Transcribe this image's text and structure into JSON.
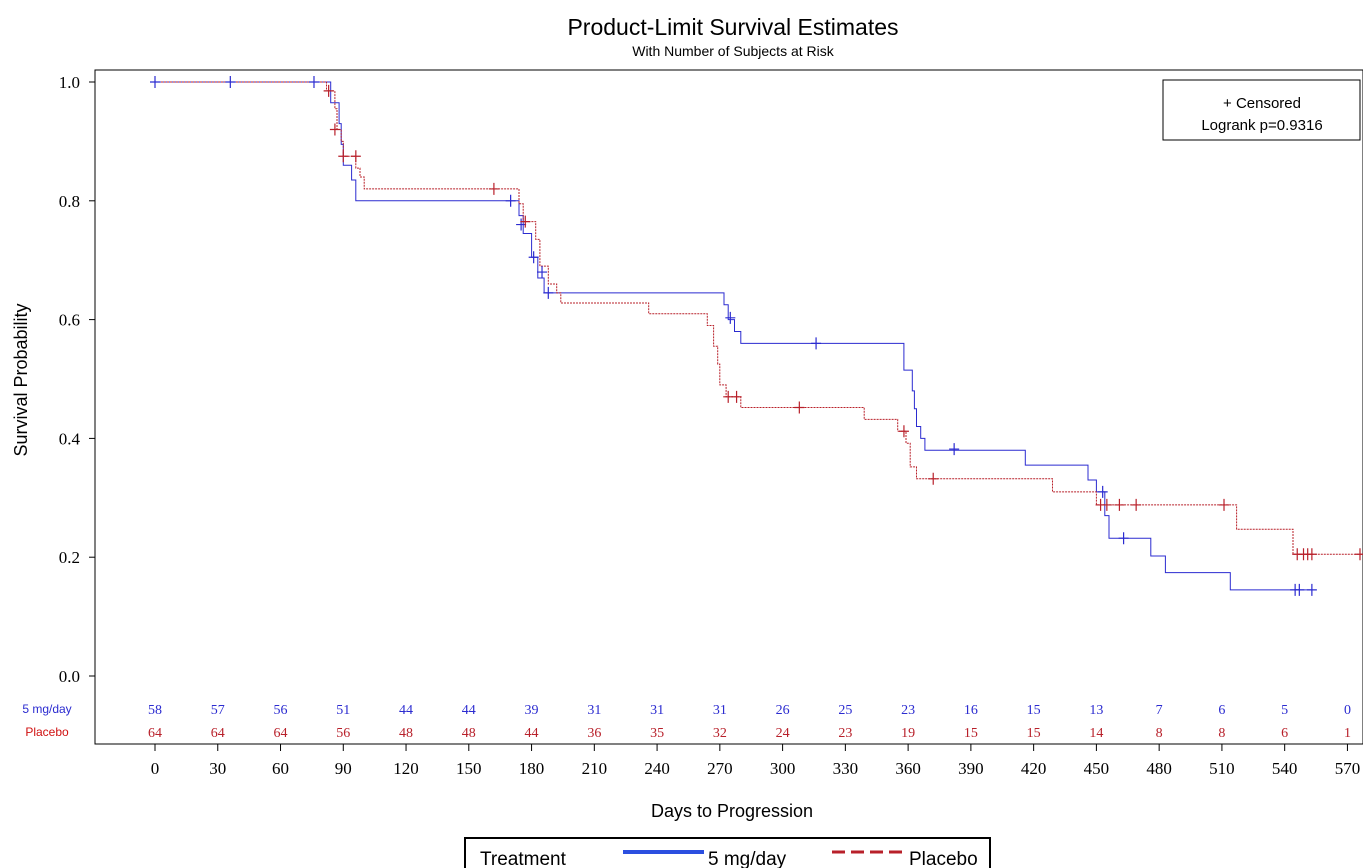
{
  "chart_data": {
    "type": "line",
    "title": "Product-Limit Survival Estimates",
    "subtitle": "With Number of Subjects at Risk",
    "xlabel": "Days to Progression",
    "ylabel": "Survival Probability",
    "xlim": [
      -15,
      578
    ],
    "ylim": [
      0,
      1.02
    ],
    "x_ticks": [
      0,
      30,
      60,
      90,
      120,
      150,
      180,
      210,
      240,
      270,
      300,
      330,
      360,
      390,
      420,
      450,
      480,
      510,
      540,
      570
    ],
    "y_ticks": [
      "0.0",
      "0.2",
      "0.4",
      "0.6",
      "0.8",
      "1.0"
    ],
    "annotation": {
      "censored_label": "+ Censored",
      "logrank_label": "Logrank p=0.9316"
    },
    "legend": {
      "title": "Treatment",
      "placement": "bottom"
    },
    "series": [
      {
        "name": "5 mg/day",
        "color": "#2b2bd0",
        "dash": "solid",
        "steps": [
          [
            0,
            1.0
          ],
          [
            84,
            1.0
          ],
          [
            84,
            0.965
          ],
          [
            88,
            0.965
          ],
          [
            88,
            0.93
          ],
          [
            89,
            0.93
          ],
          [
            89,
            0.895
          ],
          [
            90,
            0.895
          ],
          [
            90,
            0.86
          ],
          [
            94,
            0.86
          ],
          [
            94,
            0.835
          ],
          [
            96,
            0.835
          ],
          [
            96,
            0.8
          ],
          [
            174,
            0.8
          ],
          [
            174,
            0.775
          ],
          [
            176,
            0.775
          ],
          [
            176,
            0.745
          ],
          [
            180,
            0.745
          ],
          [
            180,
            0.705
          ],
          [
            183,
            0.705
          ],
          [
            183,
            0.67
          ],
          [
            186,
            0.67
          ],
          [
            186,
            0.645
          ],
          [
            272,
            0.645
          ],
          [
            272,
            0.625
          ],
          [
            274,
            0.625
          ],
          [
            274,
            0.6
          ],
          [
            277,
            0.6
          ],
          [
            277,
            0.58
          ],
          [
            280,
            0.58
          ],
          [
            280,
            0.56
          ],
          [
            358,
            0.56
          ],
          [
            358,
            0.515
          ],
          [
            362,
            0.515
          ],
          [
            362,
            0.48
          ],
          [
            363,
            0.48
          ],
          [
            363,
            0.45
          ],
          [
            364,
            0.45
          ],
          [
            364,
            0.42
          ],
          [
            366,
            0.42
          ],
          [
            366,
            0.4
          ],
          [
            368,
            0.4
          ],
          [
            368,
            0.38
          ],
          [
            416,
            0.38
          ],
          [
            416,
            0.355
          ],
          [
            446,
            0.355
          ],
          [
            446,
            0.33
          ],
          [
            450,
            0.33
          ],
          [
            450,
            0.31
          ],
          [
            454,
            0.31
          ],
          [
            454,
            0.27
          ],
          [
            456,
            0.27
          ],
          [
            456,
            0.232
          ],
          [
            476,
            0.232
          ],
          [
            476,
            0.202
          ],
          [
            483,
            0.202
          ],
          [
            483,
            0.174
          ],
          [
            514,
            0.174
          ],
          [
            514,
            0.145
          ],
          [
            553,
            0.145
          ]
        ],
        "censored": [
          [
            0,
            1.0
          ],
          [
            36,
            1.0
          ],
          [
            76,
            1.0
          ],
          [
            170,
            0.8
          ],
          [
            175,
            0.76
          ],
          [
            181,
            0.705
          ],
          [
            185,
            0.68
          ],
          [
            188,
            0.645
          ],
          [
            275,
            0.603
          ],
          [
            316,
            0.56
          ],
          [
            382,
            0.382
          ],
          [
            453,
            0.31
          ],
          [
            463,
            0.232
          ],
          [
            545,
            0.145
          ],
          [
            547,
            0.145
          ],
          [
            553,
            0.145
          ]
        ],
        "at_risk": [
          58,
          57,
          56,
          51,
          44,
          44,
          39,
          31,
          31,
          31,
          26,
          25,
          23,
          16,
          15,
          13,
          7,
          6,
          5,
          0
        ]
      },
      {
        "name": "Placebo",
        "color": "#b8202a",
        "dash": "dashed",
        "steps": [
          [
            0,
            1.0
          ],
          [
            82,
            1.0
          ],
          [
            82,
            0.985
          ],
          [
            86,
            0.985
          ],
          [
            86,
            0.955
          ],
          [
            87,
            0.955
          ],
          [
            87,
            0.92
          ],
          [
            89,
            0.92
          ],
          [
            89,
            0.9
          ],
          [
            90,
            0.9
          ],
          [
            90,
            0.875
          ],
          [
            96,
            0.875
          ],
          [
            96,
            0.855
          ],
          [
            98,
            0.855
          ],
          [
            98,
            0.84
          ],
          [
            100,
            0.84
          ],
          [
            100,
            0.82
          ],
          [
            174,
            0.82
          ],
          [
            174,
            0.795
          ],
          [
            176,
            0.795
          ],
          [
            176,
            0.765
          ],
          [
            182,
            0.765
          ],
          [
            182,
            0.735
          ],
          [
            184,
            0.735
          ],
          [
            184,
            0.69
          ],
          [
            188,
            0.69
          ],
          [
            188,
            0.66
          ],
          [
            192,
            0.66
          ],
          [
            192,
            0.645
          ],
          [
            194,
            0.645
          ],
          [
            194,
            0.628
          ],
          [
            236,
            0.628
          ],
          [
            236,
            0.61
          ],
          [
            264,
            0.61
          ],
          [
            264,
            0.59
          ],
          [
            267,
            0.59
          ],
          [
            267,
            0.555
          ],
          [
            269,
            0.555
          ],
          [
            269,
            0.525
          ],
          [
            270,
            0.525
          ],
          [
            270,
            0.49
          ],
          [
            273,
            0.49
          ],
          [
            273,
            0.47
          ],
          [
            280,
            0.47
          ],
          [
            280,
            0.452
          ],
          [
            339,
            0.452
          ],
          [
            339,
            0.432
          ],
          [
            355,
            0.432
          ],
          [
            355,
            0.412
          ],
          [
            359,
            0.412
          ],
          [
            359,
            0.392
          ],
          [
            361,
            0.392
          ],
          [
            361,
            0.352
          ],
          [
            364,
            0.352
          ],
          [
            364,
            0.332
          ],
          [
            429,
            0.332
          ],
          [
            429,
            0.31
          ],
          [
            450,
            0.31
          ],
          [
            450,
            0.288
          ],
          [
            517,
            0.288
          ],
          [
            517,
            0.247
          ],
          [
            544,
            0.247
          ],
          [
            544,
            0.205
          ],
          [
            578,
            0.205
          ]
        ],
        "censored": [
          [
            83,
            0.985
          ],
          [
            86,
            0.92
          ],
          [
            90,
            0.875
          ],
          [
            96,
            0.875
          ],
          [
            162,
            0.82
          ],
          [
            177,
            0.765
          ],
          [
            274,
            0.47
          ],
          [
            278,
            0.47
          ],
          [
            308,
            0.452
          ],
          [
            358,
            0.412
          ],
          [
            372,
            0.332
          ],
          [
            452,
            0.288
          ],
          [
            455,
            0.288
          ],
          [
            461,
            0.288
          ],
          [
            469,
            0.288
          ],
          [
            511,
            0.288
          ],
          [
            546,
            0.205
          ],
          [
            549,
            0.205
          ],
          [
            551,
            0.205
          ],
          [
            553,
            0.205
          ],
          [
            576,
            0.205
          ]
        ],
        "at_risk": [
          64,
          64,
          64,
          56,
          48,
          48,
          44,
          36,
          35,
          32,
          24,
          23,
          19,
          15,
          15,
          14,
          8,
          8,
          6,
          1
        ]
      }
    ]
  }
}
